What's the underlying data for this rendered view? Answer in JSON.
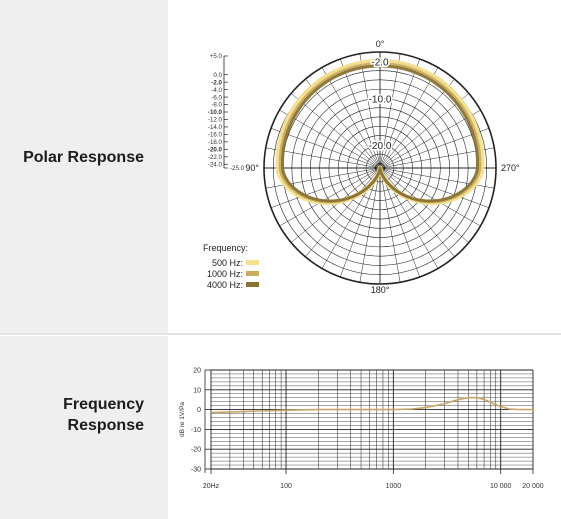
{
  "polar_section": {
    "title": "Polar Response"
  },
  "frequency_section": {
    "title": "Frequency\nResponse"
  },
  "colors": {
    "500": "#f5e08f",
    "1000": "#c9ad62",
    "4000": "#8a7336",
    "grid": "#222222",
    "curve": "#c8a66a"
  },
  "chart_data": [
    {
      "type": "polar",
      "angle_labels": [
        "0°",
        "90°",
        "180°",
        "270°"
      ],
      "ring_labels": [
        "-2.0",
        "-10.0",
        "-20.0"
      ],
      "scale_labels": [
        "+5.0",
        "0.0",
        "-2.0",
        "-4.0",
        "-6.0",
        "-8.0",
        "-10.0",
        "-12.0",
        "-14.0",
        "-16.0",
        "-18.0",
        "-20.0",
        "-22.0",
        "-24.0",
        "-25.0"
      ],
      "scale_values": [
        5,
        0,
        -2,
        -4,
        -6,
        -8,
        -10,
        -12,
        -14,
        -16,
        -18,
        -20,
        -22,
        -24,
        -25
      ],
      "bold_scale_values": [
        -2,
        -10,
        -20
      ],
      "legend_title": "Frequency:",
      "series": [
        {
          "name": "500 Hz:",
          "color": "#f5e08f",
          "front_db": -2.0,
          "side_db": -3.0,
          "rear_db": -25.0
        },
        {
          "name": "1000 Hz:",
          "color": "#c9ad62",
          "front_db": -2.5,
          "side_db": -3.5,
          "rear_db": -25.0
        },
        {
          "name": "4000 Hz:",
          "color": "#8a7336",
          "front_db": -3.0,
          "side_db": -4.0,
          "rear_db": -25.0
        }
      ]
    },
    {
      "type": "line",
      "ylabel": "dB re 1V/Pa",
      "ylim": [
        -30,
        20
      ],
      "yticks": [
        20,
        10,
        0,
        -10,
        -20,
        -30
      ],
      "yticklabels": [
        "20",
        "10",
        "0",
        "-10",
        "-20",
        "-30"
      ],
      "xscale": "log",
      "xlim": [
        20,
        20000
      ],
      "xticks": [
        20,
        100,
        1000,
        10000,
        20000
      ],
      "xticklabels": [
        "20Hz",
        "100",
        "1000",
        "10 000",
        "20 000"
      ],
      "series": [
        {
          "x": [
            20,
            40,
            60,
            100,
            200,
            400,
            700,
            1000,
            1500,
            2000,
            3000,
            4000,
            5000,
            6000,
            7000,
            8000,
            9000,
            10000,
            12000,
            15000,
            20000
          ],
          "y": [
            -1.5,
            -1.0,
            -0.7,
            -0.3,
            0,
            0,
            0,
            0,
            0.3,
            1.0,
            3.0,
            5.0,
            6.0,
            6.0,
            5.2,
            3.8,
            2.5,
            1.5,
            0.3,
            0,
            0
          ]
        }
      ]
    }
  ]
}
